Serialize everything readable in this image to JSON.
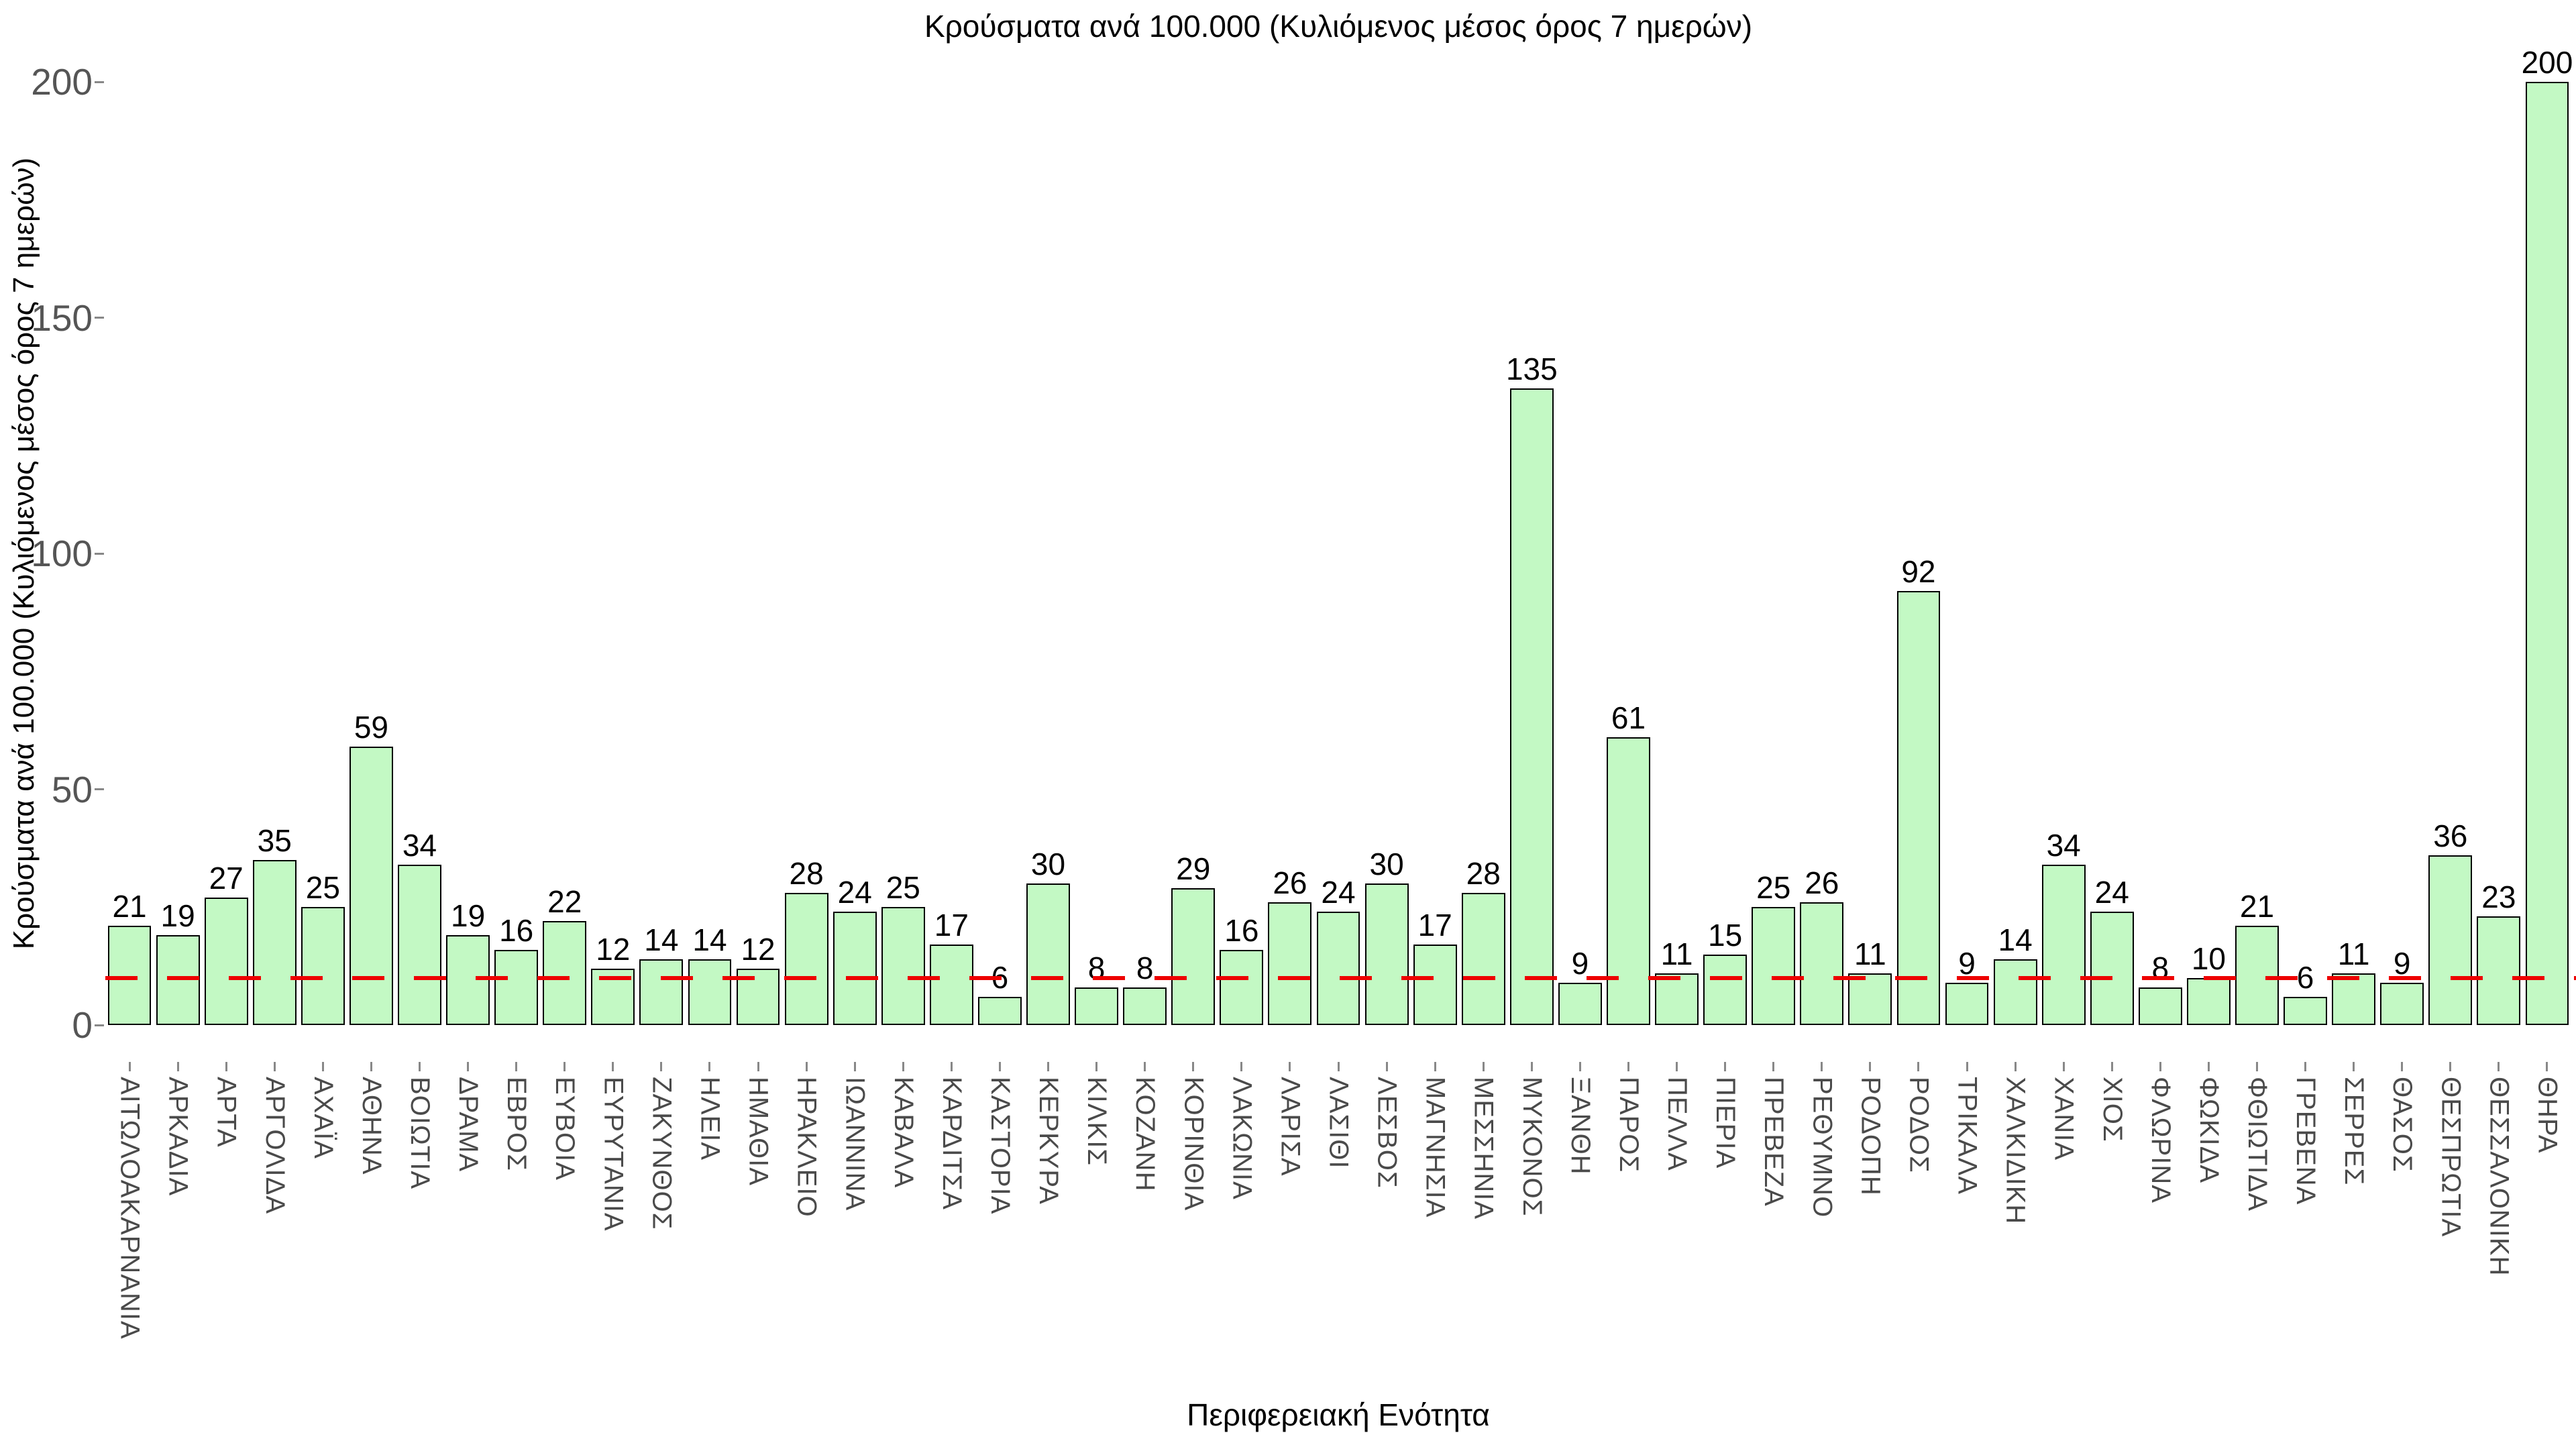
{
  "chart_data": {
    "type": "bar",
    "title": "Κρούσματα ανά 100.000 (Κυλιόμενος μέσος όρος 7 ημερών)",
    "xlabel": "Περιφερειακή Ενότητα",
    "ylabel": "Κρούσματα ανά 100.000 (Κυλιόμενος μέσος όρος 7 ημερών)",
    "categories": [
      "ΑΙΤΩΛΟΑΚΑΡΝΑΝΙΑ",
      "ΑΡΚΑΔΙΑ",
      "ΑΡΤΑ",
      "ΑΡΓΟΛΙΔΑ",
      "ΑΧΑΪΑ",
      "ΑΘΗΝΑ",
      "ΒΟΙΩΤΙΑ",
      "ΔΡΑΜΑ",
      "ΕΒΡΟΣ",
      "ΕΥΒΟΙΑ",
      "ΕΥΡΥΤΑΝΙΑ",
      "ΖΑΚΥΝΘΟΣ",
      "ΗΛΕΙΑ",
      "ΗΜΑΘΙΑ",
      "ΗΡΑΚΛΕΙΟ",
      "ΙΩΑΝΝΙΝΑ",
      "ΚΑΒΑΛΑ",
      "ΚΑΡΔΙΤΣΑ",
      "ΚΑΣΤΟΡΙΑ",
      "ΚΕΡΚΥΡΑ",
      "ΚΙΛΚΙΣ",
      "ΚΟΖΑΝΗ",
      "ΚΟΡΙΝΘΙΑ",
      "ΛΑΚΩΝΙΑ",
      "ΛΑΡΙΣΑ",
      "ΛΑΣΙΘΙ",
      "ΛΕΣΒΟΣ",
      "ΜΑΓΝΗΣΙΑ",
      "ΜΕΣΣΗΝΙΑ",
      "ΜΥΚΟΝΟΣ",
      "ΞΑΝΘΗ",
      "ΠΑΡΟΣ",
      "ΠΕΛΛΑ",
      "ΠΙΕΡΙΑ",
      "ΠΡΕΒΕΖΑ",
      "ΡΕΘΥΜΝΟ",
      "ΡΟΔΟΠΗ",
      "ΡΟΔΟΣ",
      "ΤΡΙΚΑΛΑ",
      "ΧΑΛΚΙΔΙΚΗ",
      "ΧΑΝΙΑ",
      "ΧΙΟΣ",
      "ΦΛΩΡΙΝΑ",
      "ΦΩΚΙΔΑ",
      "ΦΘΙΩΤΙΔΑ",
      "ΓΡΕΒΕΝΑ",
      "ΣΕΡΡΕΣ",
      "ΘΑΣΟΣ",
      "ΘΕΣΠΡΩΤΙΑ",
      "ΘΕΣΣΑΛΟΝΙΚΗ",
      "ΘΗΡΑ"
    ],
    "values": [
      21,
      19,
      27,
      35,
      25,
      59,
      34,
      19,
      16,
      22,
      12,
      14,
      14,
      12,
      28,
      24,
      25,
      17,
      6,
      30,
      8,
      8,
      29,
      16,
      26,
      24,
      30,
      17,
      28,
      135,
      9,
      61,
      11,
      15,
      25,
      26,
      11,
      92,
      9,
      14,
      34,
      24,
      8,
      10,
      21,
      6,
      11,
      9,
      36,
      23,
      200
    ],
    "yticks": [
      0,
      50,
      100,
      150,
      200
    ],
    "ylim": [
      0,
      200
    ],
    "reference_line": 10,
    "grid": false,
    "legend": "none",
    "colors": {
      "bar_fill": "#c3f9c4",
      "bar_border": "#000000",
      "reference_line": "#ee0000",
      "tick_text": "#555555",
      "category_text": "#4a4a4a",
      "value_text": "#000000"
    }
  }
}
